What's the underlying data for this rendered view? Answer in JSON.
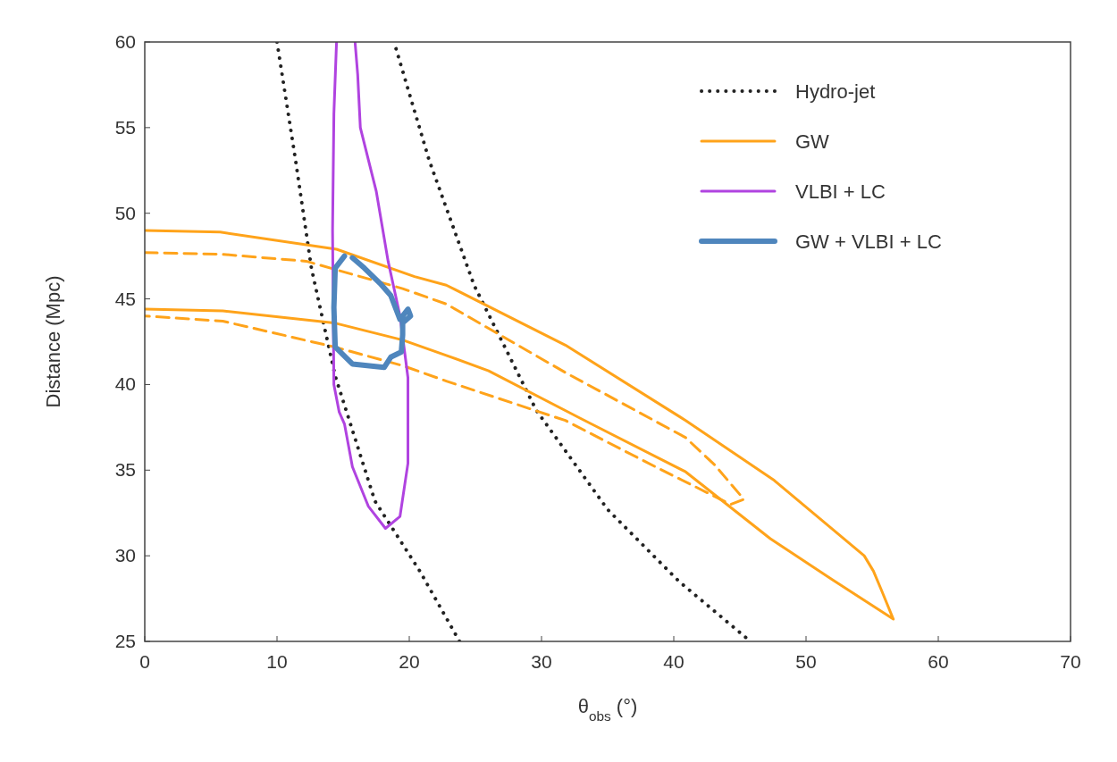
{
  "chart_data": {
    "type": "line",
    "xlabel": "θ$_{obs}$ (°)",
    "ylabel": "Distance (Mpc)",
    "xlim": [
      0,
      70
    ],
    "xticks": [
      0,
      10,
      20,
      30,
      40,
      50,
      60,
      70
    ],
    "ylim": [
      25,
      60
    ],
    "yticks": [
      25,
      30,
      35,
      40,
      45,
      50,
      55,
      60
    ],
    "grid": false,
    "legend": "top right",
    "marker": "none",
    "series": [
      {
        "name": "Hydro-jet",
        "color": "#222222",
        "line_style": "dotted",
        "x": [
          10.0,
          11.4,
          12.6,
          14.4,
          17.4,
          20.8,
          23.8
        ],
        "values": [
          60,
          53.1,
          46.8,
          40.5,
          33.2,
          29.1,
          25
        ]
      },
      {
        "color": "#222222",
        "line_style": "dotted",
        "x": [
          19.0,
          21.5,
          24.9,
          29.6,
          35.0,
          40.4,
          45.8
        ],
        "values": [
          59.6,
          53.1,
          45.8,
          38.5,
          32.7,
          28.5,
          25
        ]
      },
      {
        "name": "GW",
        "color": "#ffa31a",
        "line_style": "solid",
        "x": [
          0,
          5.7,
          14.5,
          20.4,
          22.8,
          31.8,
          40.9,
          47.6,
          54.4,
          55.1,
          55.7,
          56.6,
          52.0,
          47.3,
          40.9,
          33.0,
          26.0,
          22.8,
          19.5,
          14.3,
          5.9,
          0
        ],
        "values": [
          49.0,
          48.9,
          47.9,
          46.3,
          45.8,
          42.3,
          37.9,
          34.4,
          30.0,
          29.1,
          28.0,
          26.3,
          28.6,
          31.0,
          34.9,
          38.0,
          40.8,
          41.7,
          42.6,
          43.6,
          44.3,
          44.4
        ]
      },
      {
        "color": "#ffa31a",
        "line_style": "dashed",
        "x": [
          0,
          5.9,
          12.2,
          19.5,
          22.8,
          31.8,
          40.9,
          43.1,
          45.3,
          44.3,
          38.6,
          31.8,
          22.8,
          19.5,
          14.3,
          5.9,
          0
        ],
        "values": [
          47.7,
          47.6,
          47.2,
          45.6,
          44.7,
          40.7,
          36.9,
          35.3,
          33.3,
          33.0,
          35.2,
          37.9,
          40.2,
          41.1,
          42.2,
          43.7,
          44.0
        ]
      },
      {
        "name": "VLBI + LC",
        "color": "#b043e0",
        "line_style": "solid",
        "x": [
          14.5,
          14.3,
          14.2,
          14.3,
          14.7,
          15.1,
          15.7,
          16.9,
          18.2,
          19.3,
          19.9,
          19.9,
          19.3,
          18.4,
          17.5,
          16.3,
          16.1,
          15.9
        ],
        "values": [
          60,
          55.8,
          49.0,
          40.0,
          38.4,
          37.7,
          35.2,
          32.9,
          31.6,
          32.3,
          35.4,
          40.4,
          44.0,
          47.2,
          51.3,
          55.0,
          58.1,
          60
        ]
      },
      {
        "name": "GW + VLBI + LC",
        "color": "#4f86bd",
        "line_style": "solid",
        "x": [
          15.1,
          14.4,
          14.3,
          14.4,
          15.7,
          18.1,
          18.6,
          19.4,
          19.5,
          19.5,
          20.1,
          19.9,
          19.3,
          18.6,
          17.8,
          16.6,
          15.7
        ],
        "values": [
          47.5,
          46.8,
          44.5,
          42.2,
          41.2,
          41.0,
          41.6,
          41.9,
          42.9,
          43.6,
          44.0,
          44.4,
          43.8,
          45.2,
          45.9,
          46.8,
          47.4
        ]
      }
    ]
  }
}
